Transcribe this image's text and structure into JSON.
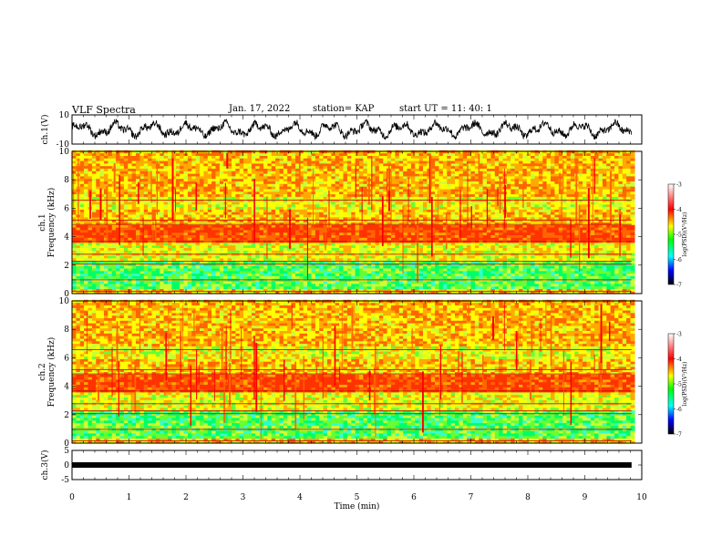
{
  "header": {
    "title": "VLF Spectra",
    "date": "Jan. 17, 2022",
    "station": "station= KAP",
    "start": "start UT =  11: 40: 1"
  },
  "chart_data": [
    {
      "type": "line",
      "name": "ch1-waveform",
      "ylabel": "ch.1(V)",
      "ylim": [
        -10,
        10
      ],
      "yticks": [
        "10",
        "-10"
      ],
      "xlim": [
        0,
        10
      ]
    },
    {
      "type": "heatmap",
      "name": "ch1-spectrogram",
      "ylabel": "ch.1 Frequency (kHz)",
      "xlim": [
        0,
        10
      ],
      "ylim": [
        0,
        10
      ],
      "yticks": [
        "0",
        "2",
        "4",
        "6",
        "8",
        "10"
      ],
      "colorbar": {
        "label": "log(PSD)(V²/Hz)",
        "range": [
          -7,
          -3
        ],
        "ticks": [
          "-3",
          "-4",
          "-5",
          "-6",
          "-7"
        ]
      }
    },
    {
      "type": "heatmap",
      "name": "ch2-spectrogram",
      "ylabel": "ch.2 Frequency (kHz)",
      "xlim": [
        0,
        10
      ],
      "ylim": [
        0,
        10
      ],
      "yticks": [
        "0",
        "2",
        "4",
        "6",
        "8",
        "10"
      ],
      "colorbar": {
        "label": "log(PSD)(V²/Hz)",
        "range": [
          -7,
          -3
        ],
        "ticks": [
          "-3",
          "-4",
          "-5",
          "-6",
          "-7"
        ]
      }
    },
    {
      "type": "line",
      "name": "ch3-waveform",
      "ylabel": "ch.3(V)",
      "ylim": [
        -5,
        5
      ],
      "yticks": [
        "5",
        "0",
        "-5"
      ],
      "xlim": [
        0,
        10
      ],
      "xlabel": "Time (min)",
      "xticks": [
        "0",
        "1",
        "2",
        "3",
        "4",
        "5",
        "6",
        "7",
        "8",
        "9",
        "10"
      ]
    }
  ],
  "colors": {
    "cb_top": "#ffffff",
    "cb_hi": "#ff0000",
    "cb_mid": "#00ff00",
    "cb_lo": "#0000ff",
    "cb_bottom": "#000000"
  }
}
